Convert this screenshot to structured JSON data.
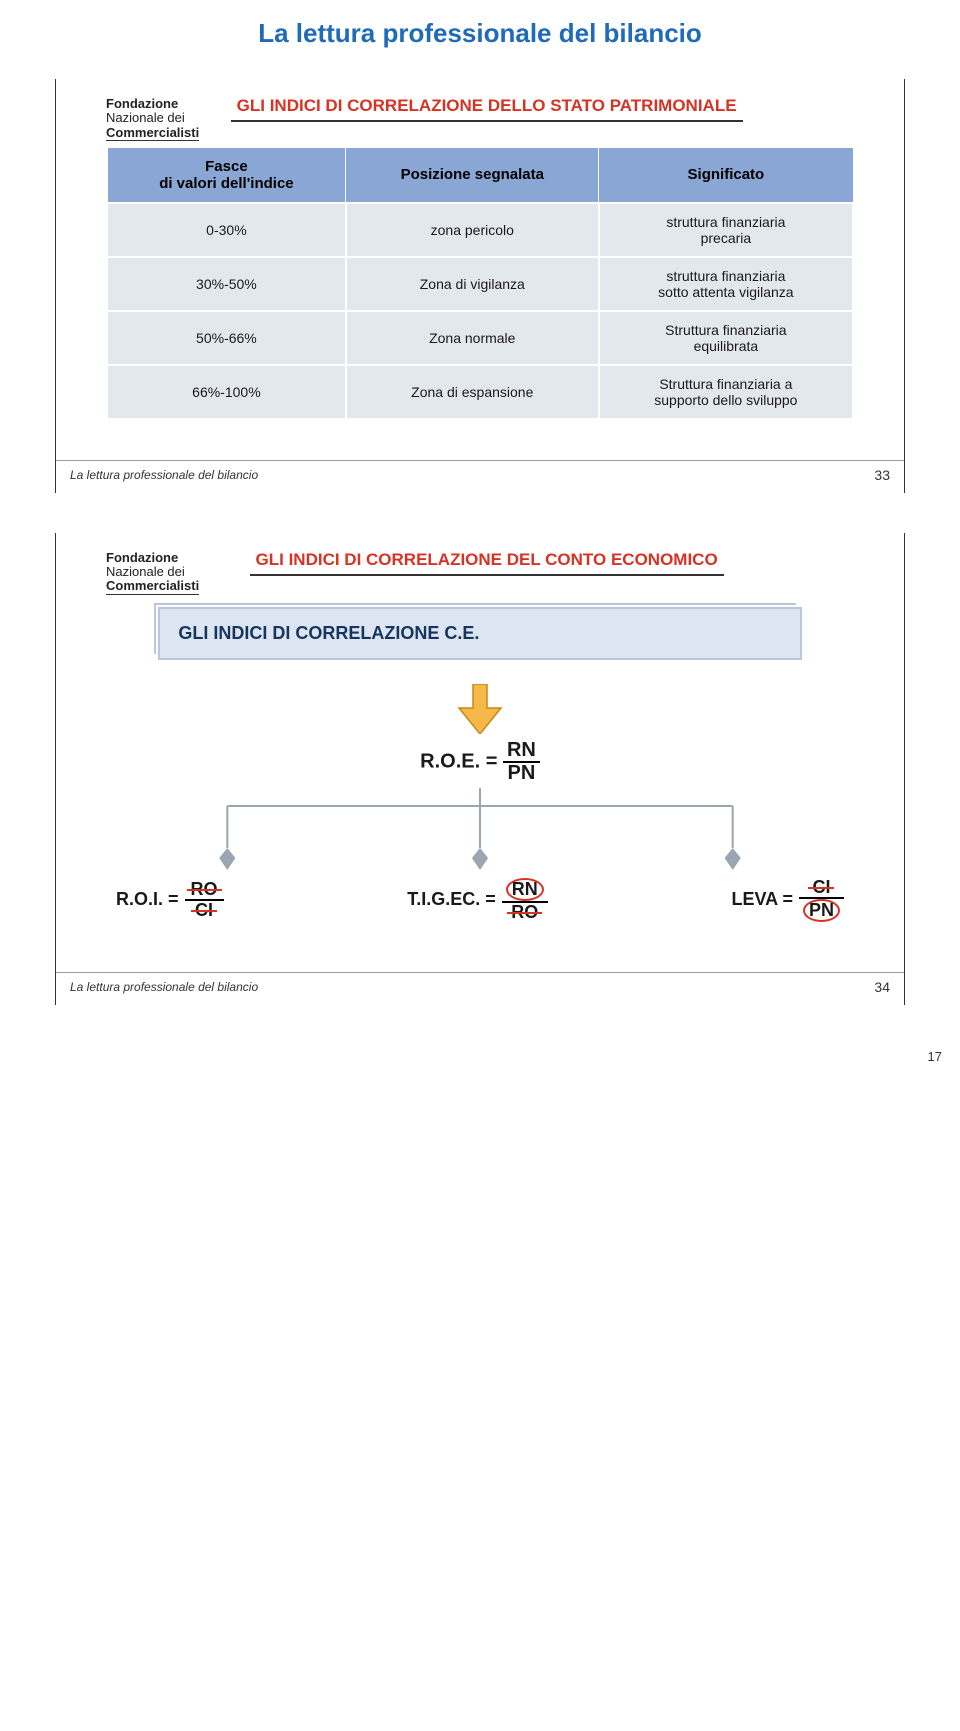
{
  "page": {
    "title": "La lettura professionale del bilancio",
    "corner_number": "17"
  },
  "logo": {
    "line1": "Fondazione",
    "line2": "Nazionale dei",
    "line3": "Commercialisti"
  },
  "slide1": {
    "title": "GLI INDICI DI CORRELAZIONE DELLO STATO\nPATRIMONIALE",
    "table": {
      "columns": [
        "Fasce\ndi  valori dell'indice",
        "Posizione segnalata",
        "Significato"
      ],
      "rows": [
        [
          "0-30%",
          "zona pericolo",
          "struttura finanziaria\nprecaria"
        ],
        [
          "30%-50%",
          "Zona di vigilanza",
          "struttura finanziaria\nsotto attenta vigilanza"
        ],
        [
          "50%-66%",
          "Zona normale",
          "Struttura finanziaria\nequilibrata"
        ],
        [
          "66%-100%",
          "Zona di espansione",
          "Struttura finanziaria a\nsupporto dello sviluppo"
        ]
      ],
      "header_bg": "#8aa6d4",
      "row_bg": "#e3e7ee"
    },
    "footer_caption": "La lettura professionale del bilancio",
    "footer_num": "33"
  },
  "slide2": {
    "title": "GLI INDICI DI CORRELAZIONE DEL CONTO\nECONOMICO",
    "box_text": "GLI INDICI DI  CORRELAZIONE C.E.",
    "roe": {
      "label": "R.O.E. =",
      "num": "RN",
      "den": "PN"
    },
    "equations": {
      "roi": {
        "label": "R.O.I. =",
        "num": "RO",
        "den": "CI",
        "num_strike": true,
        "den_strike": true
      },
      "tig": {
        "label": "T.I.G.EC. =",
        "num": "RN",
        "den": "RO",
        "num_circled": true,
        "den_strike": true
      },
      "leva": {
        "label": "LEVA =",
        "num": "CI",
        "den": "PN",
        "num_strike": true,
        "den_circled": true
      }
    },
    "footer_caption": "La lettura professionale del bilancio",
    "footer_num": "34",
    "colors": {
      "box_bg": "#dde5f2",
      "box_border": "#b9c6de",
      "box_text": "#16365f",
      "arrow_fill": "#f6b84a",
      "arrow_stroke": "#c48a14",
      "connector": "#9aa6b2",
      "title_color": "#d63324",
      "strike_color": "#d63324"
    }
  }
}
